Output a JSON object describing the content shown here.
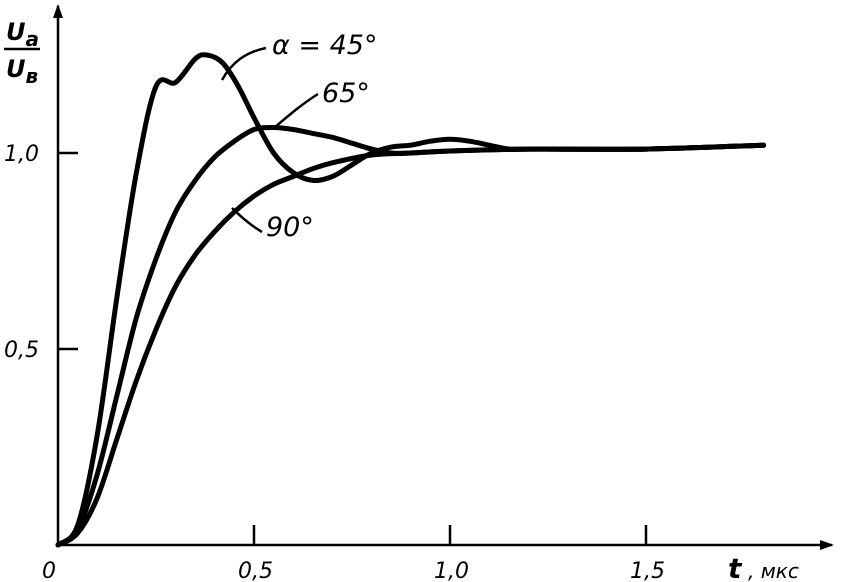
{
  "chart_data": {
    "type": "line",
    "title": "",
    "ylabel_numerator": "U",
    "ylabel_numerator_sub": "a",
    "ylabel_denominator": "U",
    "ylabel_denominator_sub": "в",
    "xlabel": "t",
    "xlabel_unit": ", мкс",
    "xlim": [
      0,
      1.95
    ],
    "ylim": [
      0,
      1.35
    ],
    "x_ticks": [
      {
        "value": 0.5,
        "label": "0,5"
      },
      {
        "value": 1.0,
        "label": "1,0"
      },
      {
        "value": 1.5,
        "label": "1,5"
      }
    ],
    "y_ticks": [
      {
        "value": 0.5,
        "label": "0,5"
      },
      {
        "value": 1.0,
        "label": "1,0"
      }
    ],
    "origin_label": "0",
    "grid": false,
    "legend": "none",
    "series": [
      {
        "label": "α = 45°",
        "x": [
          0,
          0.05,
          0.1,
          0.15,
          0.2,
          0.25,
          0.3,
          0.35,
          0.38,
          0.42,
          0.46,
          0.5,
          0.55,
          0.6,
          0.65,
          0.7,
          0.75,
          0.8,
          0.85,
          0.9,
          0.95,
          1.0,
          1.05,
          1.1,
          1.15,
          1.2,
          1.5,
          1.8
        ],
        "values": [
          0,
          0.05,
          0.28,
          0.63,
          0.95,
          1.17,
          1.18,
          1.24,
          1.25,
          1.23,
          1.17,
          1.09,
          1.0,
          0.95,
          0.93,
          0.94,
          0.97,
          1.0,
          1.015,
          1.02,
          1.03,
          1.035,
          1.03,
          1.02,
          1.01,
          1.01,
          1.01,
          1.02
        ]
      },
      {
        "label": "65°",
        "x": [
          0,
          0.05,
          0.1,
          0.15,
          0.2,
          0.25,
          0.3,
          0.35,
          0.4,
          0.45,
          0.5,
          0.55,
          0.6,
          0.65,
          0.7,
          0.75,
          0.8,
          0.85,
          0.9,
          1.0,
          1.2,
          1.5,
          1.8
        ],
        "values": [
          0,
          0.04,
          0.18,
          0.38,
          0.58,
          0.73,
          0.85,
          0.93,
          0.99,
          1.03,
          1.06,
          1.065,
          1.06,
          1.05,
          1.04,
          1.025,
          1.01,
          1.0,
          1.0,
          1.005,
          1.01,
          1.01,
          1.02
        ]
      },
      {
        "label": "90°",
        "x": [
          0,
          0.05,
          0.1,
          0.15,
          0.2,
          0.25,
          0.3,
          0.35,
          0.4,
          0.45,
          0.5,
          0.55,
          0.6,
          0.65,
          0.7,
          0.8,
          0.9,
          1.0,
          1.2,
          1.5,
          1.8
        ],
        "values": [
          0,
          0.03,
          0.12,
          0.27,
          0.42,
          0.55,
          0.66,
          0.74,
          0.8,
          0.85,
          0.89,
          0.92,
          0.94,
          0.96,
          0.975,
          0.995,
          1.0,
          1.005,
          1.01,
          1.01,
          1.02
        ]
      }
    ]
  }
}
